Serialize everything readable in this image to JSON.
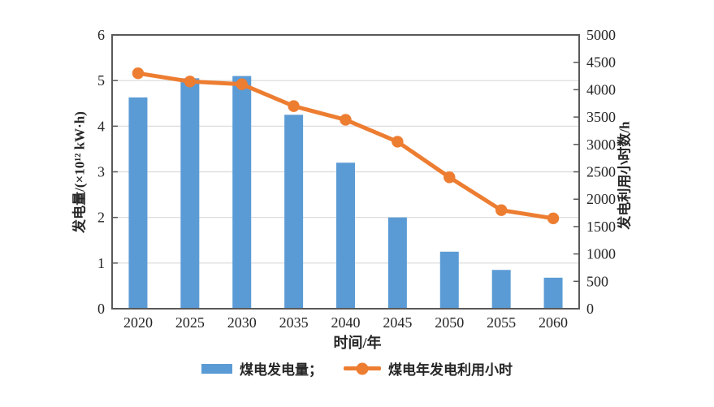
{
  "figure": {
    "background": "#ffffff",
    "axis_titles": {
      "x": "时间/年",
      "y_left": "发电量/(×10¹² kW·h)",
      "y_right": "发电利用小时数/h"
    },
    "legend": {
      "items": [
        {
          "label": "煤电发电量；",
          "marker": "bar-swatch",
          "color": "#5B9BD5"
        },
        {
          "label": "煤电年发电利用小时",
          "marker": "line-with-circle-marker",
          "color": "#ED7D31"
        }
      ]
    }
  },
  "chart_data": {
    "type": "bar",
    "subtype": "combo bar + line, dual y-axes",
    "title": "",
    "categories": [
      "2020",
      "2025",
      "2030",
      "2035",
      "2040",
      "2045",
      "2050",
      "2055",
      "2060"
    ],
    "series": [
      {
        "name": "煤电发电量",
        "type": "bar",
        "axis": "left",
        "color": "#5B9BD5",
        "values": [
          4.63,
          5.05,
          5.1,
          4.25,
          3.2,
          2.0,
          1.25,
          0.85,
          0.68
        ]
      },
      {
        "name": "煤电年发电利用小时",
        "type": "line",
        "axis": "right",
        "color": "#ED7D31",
        "values": [
          4300,
          4150,
          4100,
          3700,
          3450,
          3050,
          2400,
          1800,
          1650
        ]
      }
    ],
    "xlabel": "时间/年",
    "ylabel_left": "发电量/(×10¹² kW·h)",
    "ylabel_right": "发电利用小时数/h",
    "ylim_left": [
      0,
      6
    ],
    "yticks_left": [
      0,
      1,
      2,
      3,
      4,
      5,
      6
    ],
    "ylim_right": [
      0,
      5000
    ],
    "yticks_right": [
      0,
      500,
      1000,
      1500,
      2000,
      2500,
      3000,
      3500,
      4000,
      4500,
      5000
    ],
    "grid": true,
    "gridlines_at_left_values": [
      1,
      2,
      3,
      4,
      5
    ],
    "legend_position": "bottom",
    "colors": {
      "grid": "#d9d9d9",
      "border": "#595959",
      "text": "#262626"
    }
  }
}
